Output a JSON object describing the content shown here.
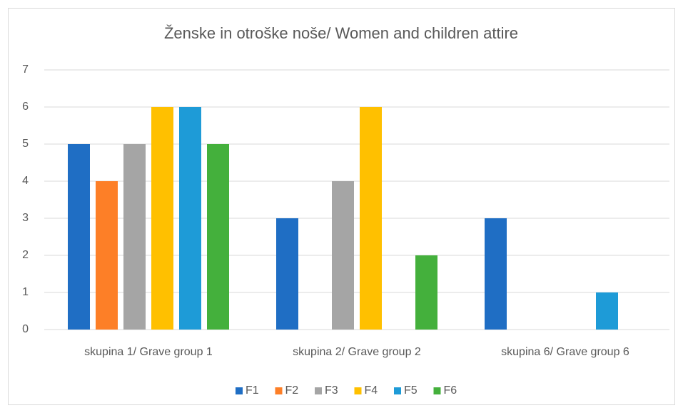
{
  "chart_data": {
    "type": "bar",
    "title": "Ženske in otroške noše/ Women and children attire",
    "categories": [
      "skupina 1/ Grave group 1",
      "skupina 2/ Grave group 2",
      "skupina 6/ Grave group 6"
    ],
    "series": [
      {
        "name": "F1",
        "color": "#1f6ec4",
        "values": [
          5,
          3,
          3
        ]
      },
      {
        "name": "F2",
        "color": "#fd7f27",
        "values": [
          4,
          0,
          0
        ]
      },
      {
        "name": "F3",
        "color": "#a5a5a5",
        "values": [
          5,
          4,
          0
        ]
      },
      {
        "name": "F4",
        "color": "#ffc000",
        "values": [
          6,
          6,
          0
        ]
      },
      {
        "name": "F5",
        "color": "#1e9bd7",
        "values": [
          6,
          0,
          1
        ]
      },
      {
        "name": "F6",
        "color": "#44b03c",
        "values": [
          5,
          2,
          0
        ]
      }
    ],
    "ylim": [
      0,
      7
    ],
    "yticks": [
      0,
      1,
      2,
      3,
      4,
      5,
      6,
      7
    ],
    "grid": true,
    "legend": "bottom"
  }
}
